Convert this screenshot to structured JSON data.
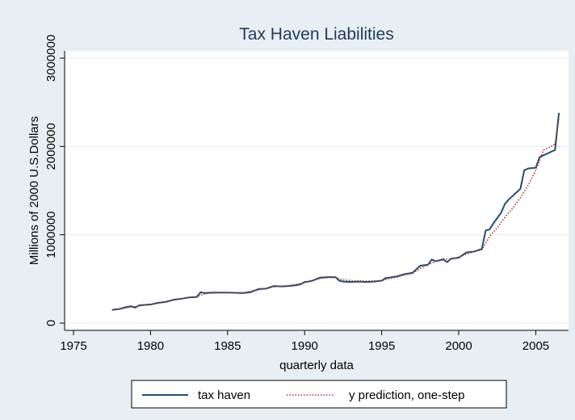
{
  "colors": {
    "background": "#e8eff4",
    "plot_area": "#ffffff",
    "tax_haven_line": "#1f4e79",
    "prediction_line": "#b03030",
    "title": "#1f3a5a"
  },
  "chart_data": {
    "type": "line",
    "title": "Tax Haven Liabilities",
    "xlabel": "quarterly data",
    "ylabel": "Millions of 2000 U.S.Dollars",
    "xlim": [
      1975,
      2006.6
    ],
    "ylim": [
      0,
      3000000
    ],
    "x_ticks": [
      1975,
      1980,
      1985,
      1990,
      1995,
      2000,
      2005
    ],
    "x_tick_labels": [
      "1975",
      "1980",
      "1985",
      "1990",
      "1995",
      "2000",
      "2005"
    ],
    "y_ticks": [
      0,
      1000000,
      2000000,
      3000000
    ],
    "y_tick_labels": [
      "0",
      "1000000",
      "2000000",
      "3000000"
    ],
    "grid": true,
    "legend_position": "bottom",
    "series": [
      {
        "name": "tax haven",
        "style": "solid",
        "x": [
          1977.5,
          1978.0,
          1978.5,
          1978.75,
          1979.0,
          1979.25,
          1979.5,
          1980.0,
          1980.5,
          1981.0,
          1981.5,
          1982.0,
          1982.5,
          1983.0,
          1983.25,
          1983.5,
          1984.0,
          1985.0,
          1986.0,
          1986.5,
          1987.0,
          1987.5,
          1988.0,
          1988.5,
          1989.0,
          1989.5,
          1989.75,
          1990.0,
          1990.25,
          1990.5,
          1991.0,
          1991.5,
          1992.0,
          1992.25,
          1992.5,
          1993.0,
          1993.5,
          1994.0,
          1994.5,
          1995.0,
          1995.25,
          1995.5,
          1996.0,
          1996.5,
          1997.0,
          1997.5,
          1998.0,
          1998.25,
          1998.5,
          1999.0,
          1999.25,
          1999.5,
          2000.0,
          2000.5,
          2001.0,
          2001.5,
          2001.75,
          2002.0,
          2002.25,
          2002.5,
          2002.75,
          2003.0,
          2003.25,
          2003.5,
          2004.0,
          2004.25,
          2004.5,
          2005.0,
          2005.25,
          2006.0,
          2006.25,
          2006.5
        ],
        "values": [
          150000,
          160000,
          185000,
          190000,
          175000,
          200000,
          205000,
          210000,
          230000,
          240000,
          265000,
          275000,
          290000,
          295000,
          350000,
          340000,
          345000,
          345000,
          340000,
          350000,
          385000,
          390000,
          420000,
          415000,
          420000,
          430000,
          440000,
          465000,
          470000,
          480000,
          515000,
          520000,
          520000,
          480000,
          470000,
          465000,
          470000,
          465000,
          470000,
          480000,
          510000,
          515000,
          530000,
          555000,
          570000,
          650000,
          660000,
          720000,
          700000,
          720000,
          690000,
          730000,
          740000,
          800000,
          810000,
          840000,
          1050000,
          1060000,
          1130000,
          1190000,
          1250000,
          1350000,
          1400000,
          1440000,
          1520000,
          1730000,
          1750000,
          1760000,
          1880000,
          1940000,
          1960000,
          2380000
        ]
      },
      {
        "name": "y prediction, one-step",
        "style": "dotted",
        "x": [
          1977.5,
          1978.0,
          1978.5,
          1979.0,
          1979.5,
          1980.0,
          1980.5,
          1981.0,
          1981.5,
          1982.0,
          1982.5,
          1983.0,
          1983.5,
          1984.0,
          1985.0,
          1986.0,
          1987.0,
          1988.0,
          1989.0,
          1989.5,
          1990.0,
          1990.5,
          1991.0,
          1991.5,
          1992.0,
          1992.5,
          1993.0,
          1994.0,
          1995.0,
          1995.5,
          1996.0,
          1996.5,
          1997.0,
          1997.5,
          1998.0,
          1998.5,
          1999.0,
          1999.5,
          2000.0,
          2000.5,
          2001.0,
          2001.5,
          2002.0,
          2002.5,
          2003.0,
          2003.5,
          2004.0,
          2004.5,
          2005.0,
          2005.5,
          2006.0,
          2006.25,
          2006.5
        ],
        "values": [
          145000,
          160000,
          175000,
          185000,
          200000,
          210000,
          225000,
          240000,
          260000,
          275000,
          290000,
          300000,
          330000,
          340000,
          345000,
          345000,
          375000,
          410000,
          425000,
          440000,
          460000,
          480000,
          505000,
          515000,
          515000,
          490000,
          480000,
          475000,
          480000,
          505000,
          520000,
          545000,
          560000,
          620000,
          660000,
          700000,
          730000,
          720000,
          750000,
          780000,
          810000,
          830000,
          980000,
          1080000,
          1200000,
          1300000,
          1420000,
          1560000,
          1730000,
          1960000,
          2000000,
          2030000,
          2320000
        ]
      }
    ]
  }
}
